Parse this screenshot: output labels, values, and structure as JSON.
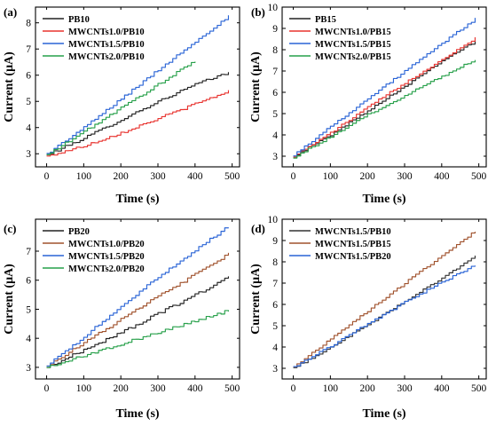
{
  "chart_data": [
    {
      "type": "line",
      "panel_label": "(a)",
      "xlabel": "Time (s)",
      "ylabel": "Current (μA)",
      "xlim": [
        -30,
        520
      ],
      "ylim": [
        2.5,
        8.6
      ],
      "xticks": [
        0,
        100,
        200,
        300,
        400,
        500
      ],
      "yticks": [
        3,
        4,
        5,
        6,
        7,
        8
      ],
      "legend": "top-left",
      "series": [
        {
          "name": "PB10",
          "color": "#222222",
          "x": [
            0,
            100,
            200,
            300,
            400,
            490
          ],
          "y": [
            2.95,
            3.6,
            4.3,
            5.0,
            5.65,
            6.1
          ]
        },
        {
          "name": "MWCNTs1.0/PB10",
          "color": "#e8332f",
          "x": [
            0,
            100,
            200,
            300,
            400,
            490
          ],
          "y": [
            2.9,
            3.3,
            3.8,
            4.35,
            4.9,
            5.4
          ]
        },
        {
          "name": "MWCNTs1.5/PB10",
          "color": "#2a64d6",
          "x": [
            0,
            100,
            200,
            300,
            400,
            490
          ],
          "y": [
            3.0,
            4.0,
            5.1,
            6.2,
            7.3,
            8.25
          ]
        },
        {
          "name": "MWCNTs2.0/PB10",
          "color": "#27a04a",
          "x": [
            0,
            100,
            200,
            300,
            400
          ],
          "y": [
            2.95,
            3.85,
            4.75,
            5.65,
            6.55
          ]
        }
      ]
    },
    {
      "type": "line",
      "panel_label": "(b)",
      "xlabel": "Time (s)",
      "ylabel": "Current (μA)",
      "xlim": [
        -30,
        520
      ],
      "ylim": [
        2.5,
        10
      ],
      "xticks": [
        0,
        100,
        200,
        300,
        400,
        500
      ],
      "yticks": [
        3,
        4,
        5,
        6,
        7,
        8,
        9,
        10
      ],
      "legend": "top-left",
      "series": [
        {
          "name": "PB15",
          "color": "#222222",
          "x": [
            0,
            100,
            200,
            300,
            400,
            490
          ],
          "y": [
            3.0,
            4.0,
            5.15,
            6.3,
            7.5,
            8.4
          ]
        },
        {
          "name": "MWCNTs1.0/PB15",
          "color": "#e8332f",
          "x": [
            0,
            100,
            200,
            300,
            400,
            490
          ],
          "y": [
            3.0,
            4.1,
            5.3,
            6.45,
            7.55,
            8.55
          ]
        },
        {
          "name": "MWCNTs1.5/PB15",
          "color": "#2a64d6",
          "x": [
            0,
            100,
            200,
            300,
            400,
            490
          ],
          "y": [
            3.05,
            4.4,
            5.7,
            7.0,
            8.3,
            9.45
          ]
        },
        {
          "name": "MWCNTs2.0/PB15",
          "color": "#27a04a",
          "x": [
            0,
            100,
            200,
            300,
            400,
            490
          ],
          "y": [
            2.95,
            3.9,
            4.95,
            5.85,
            6.75,
            7.55
          ]
        }
      ]
    },
    {
      "type": "line",
      "panel_label": "(c)",
      "xlabel": "Time (s)",
      "ylabel": "Current (μA)",
      "xlim": [
        -30,
        520
      ],
      "ylim": [
        2.6,
        8.1
      ],
      "xticks": [
        0,
        100,
        200,
        300,
        400,
        500
      ],
      "yticks": [
        3,
        4,
        5,
        6,
        7
      ],
      "legend": "top-left",
      "series": [
        {
          "name": "PB20",
          "color": "#222222",
          "x": [
            0,
            100,
            200,
            300,
            400,
            490
          ],
          "y": [
            3.0,
            3.6,
            4.2,
            4.85,
            5.5,
            6.1
          ]
        },
        {
          "name": "MWCNTs1.0/PB20",
          "color": "#a0522d",
          "x": [
            0,
            100,
            200,
            300,
            400,
            490
          ],
          "y": [
            3.05,
            3.85,
            4.65,
            5.45,
            6.2,
            6.9
          ]
        },
        {
          "name": "MWCNTs1.5/PB20",
          "color": "#2a64d6",
          "x": [
            0,
            100,
            200,
            300,
            400,
            490
          ],
          "y": [
            3.05,
            4.05,
            5.1,
            6.1,
            7.05,
            7.85
          ]
        },
        {
          "name": "MWCNTs2.0/PB20",
          "color": "#27a04a",
          "x": [
            0,
            100,
            200,
            300,
            400,
            490
          ],
          "y": [
            3.0,
            3.4,
            3.8,
            4.2,
            4.6,
            4.95
          ]
        }
      ]
    },
    {
      "type": "line",
      "panel_label": "(d)",
      "xlabel": "Time (s)",
      "ylabel": "Current (μA)",
      "xlim": [
        -30,
        520
      ],
      "ylim": [
        2.5,
        10
      ],
      "xticks": [
        0,
        100,
        200,
        300,
        400,
        500
      ],
      "yticks": [
        3,
        4,
        5,
        6,
        7,
        8,
        9,
        10
      ],
      "legend": "top-left",
      "series": [
        {
          "name": "MWCNTs1.5/PB10",
          "color": "#333333",
          "x": [
            0,
            100,
            200,
            300,
            400,
            490
          ],
          "y": [
            3.0,
            4.0,
            5.05,
            6.15,
            7.25,
            8.25
          ]
        },
        {
          "name": "MWCNTs1.5/PB15",
          "color": "#a0522d",
          "x": [
            0,
            100,
            200,
            300,
            400,
            490
          ],
          "y": [
            3.05,
            4.4,
            5.7,
            7.0,
            8.3,
            9.45
          ]
        },
        {
          "name": "MWCNTs1.5/PB20",
          "color": "#2a64d6",
          "x": [
            0,
            100,
            200,
            300,
            400,
            490
          ],
          "y": [
            3.05,
            4.05,
            5.1,
            6.1,
            7.05,
            7.85
          ]
        }
      ]
    }
  ]
}
